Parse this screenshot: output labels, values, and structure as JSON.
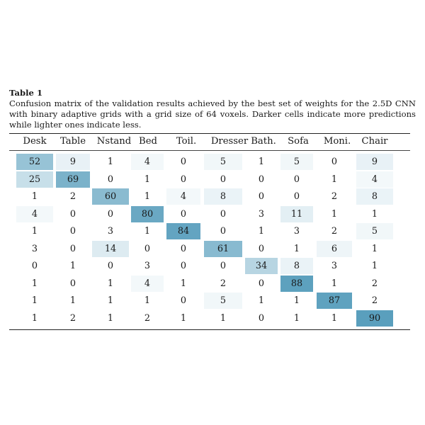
{
  "caption": {
    "label": "Table 1",
    "text": "Confusion matrix of the validation results achieved by the best set of weights for the 2.5D CNN with binary adaptive grids with a grid size of 64 voxels. Darker cells indicate more predictions while lighter ones indicate less."
  },
  "chart_data": {
    "type": "heatmap",
    "columns": [
      "Desk",
      "Table",
      "Nstand",
      "Bed",
      "Toil.",
      "Dresser",
      "Bath.",
      "Sofa",
      "Moni.",
      "Chair"
    ],
    "matrix": [
      [
        52,
        9,
        1,
        4,
        0,
        5,
        1,
        5,
        0,
        9
      ],
      [
        25,
        69,
        0,
        1,
        0,
        0,
        0,
        0,
        1,
        4
      ],
      [
        1,
        2,
        60,
        1,
        4,
        8,
        0,
        0,
        2,
        8
      ],
      [
        4,
        0,
        0,
        80,
        0,
        0,
        3,
        11,
        1,
        1
      ],
      [
        1,
        0,
        3,
        1,
        84,
        0,
        1,
        3,
        2,
        5
      ],
      [
        3,
        0,
        14,
        0,
        0,
        61,
        0,
        1,
        6,
        1
      ],
      [
        0,
        1,
        0,
        3,
        0,
        0,
        34,
        8,
        3,
        1
      ],
      [
        1,
        0,
        1,
        4,
        1,
        2,
        0,
        88,
        1,
        2
      ],
      [
        1,
        1,
        1,
        1,
        0,
        5,
        1,
        1,
        87,
        2
      ],
      [
        1,
        2,
        1,
        2,
        1,
        1,
        0,
        1,
        1,
        90
      ]
    ],
    "colors": {
      "low": "#ffffff",
      "high": "#5a9fbd"
    }
  }
}
